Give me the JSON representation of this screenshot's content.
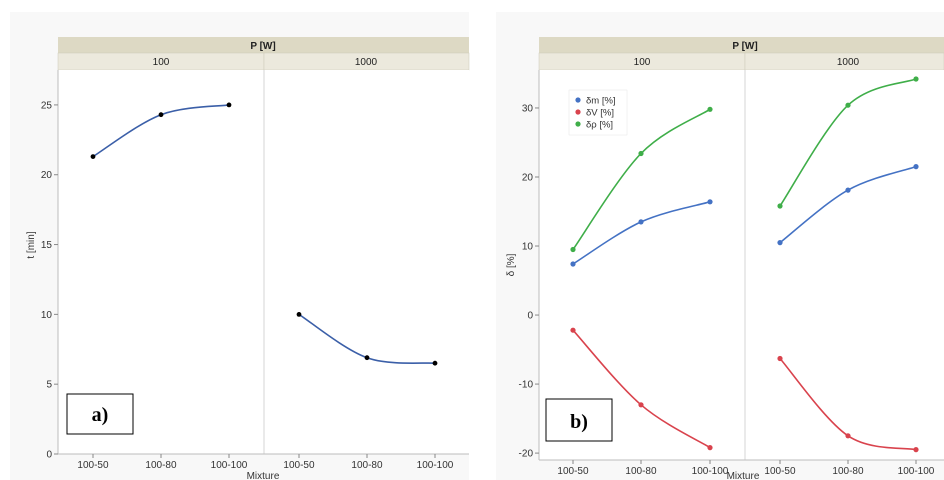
{
  "chart_data": [
    {
      "type": "line",
      "panel_label": "a)",
      "facet_title": "P [W]",
      "facets": [
        "100",
        "1000"
      ],
      "categories": [
        "100-50",
        "100-80",
        "100-100"
      ],
      "xlabel": "Mixture",
      "ylabel": "t [min]",
      "ylim": [
        0,
        27.5
      ],
      "yticks": [
        0,
        5,
        10,
        15,
        20,
        25
      ],
      "grid": false,
      "series": [
        {
          "facet": "100",
          "color": "#000000",
          "line_color": "#3b5fa8",
          "values": [
            21.3,
            24.3,
            25.0
          ]
        },
        {
          "facet": "1000",
          "color": "#000000",
          "line_color": "#3b5fa8",
          "values": [
            10.0,
            6.9,
            6.5
          ]
        }
      ]
    },
    {
      "type": "line",
      "panel_label": "b)",
      "facet_title": "P [W]",
      "facets": [
        "100",
        "1000"
      ],
      "categories": [
        "100-50",
        "100-80",
        "100-100"
      ],
      "xlabel": "Mixture",
      "ylabel": "δ [%]",
      "ylim": [
        -21,
        35.5
      ],
      "yticks": [
        -20,
        -10,
        0,
        10,
        20,
        30
      ],
      "grid": false,
      "legend": {
        "placement": "top-left",
        "entries": [
          "δm [%]",
          "δV [%]",
          "δρ [%]"
        ]
      },
      "series": [
        {
          "name": "δm [%]",
          "color": "#4472c4",
          "values_by_facet": {
            "100": [
              7.4,
              13.5,
              16.4
            ],
            "1000": [
              10.5,
              18.1,
              21.5
            ]
          }
        },
        {
          "name": "δV [%]",
          "color": "#d9434d",
          "values_by_facet": {
            "100": [
              -2.2,
              -13.0,
              -19.2
            ],
            "1000": [
              -6.3,
              -17.5,
              -19.5
            ]
          }
        },
        {
          "name": "δρ [%]",
          "color": "#3fae49",
          "values_by_facet": {
            "100": [
              9.5,
              23.4,
              29.8
            ],
            "1000": [
              15.8,
              30.4,
              34.2
            ]
          }
        }
      ]
    }
  ]
}
